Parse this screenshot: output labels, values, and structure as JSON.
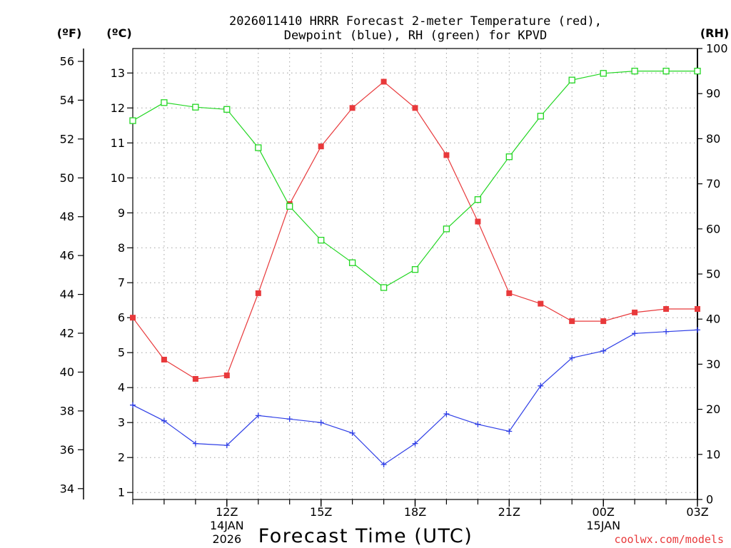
{
  "chart_data": {
    "type": "line",
    "title_line1": "2026011410 HRRR Forecast 2-meter Temperature (red),",
    "title_line2": "Dewpoint (blue), RH (green) for KPVD",
    "xlabel": "Forecast Time (UTC)",
    "credit": "coolwx.com/models",
    "unit_f": "(ºF)",
    "unit_c": "(ºC)",
    "unit_rh": "(RH)",
    "hours": [
      9,
      10,
      11,
      12,
      13,
      14,
      15,
      16,
      17,
      18,
      19,
      20,
      21,
      22,
      23,
      24,
      25,
      26,
      27
    ],
    "xlim": [
      9,
      27
    ],
    "x_ticks": [
      {
        "hour": 12,
        "label": "12Z",
        "sub1": "14JAN",
        "sub2": "2026"
      },
      {
        "hour": 15,
        "label": "15Z",
        "sub1": "",
        "sub2": ""
      },
      {
        "hour": 18,
        "label": "18Z",
        "sub1": "",
        "sub2": ""
      },
      {
        "hour": 21,
        "label": "21Z",
        "sub1": "",
        "sub2": ""
      },
      {
        "hour": 24,
        "label": "00Z",
        "sub1": "15JAN",
        "sub2": ""
      },
      {
        "hour": 27,
        "label": "03Z",
        "sub1": "",
        "sub2": ""
      }
    ],
    "celsius_axis": {
      "range": [
        0.8,
        13.7
      ],
      "ticks": [
        1,
        2,
        3,
        4,
        5,
        6,
        7,
        8,
        9,
        10,
        11,
        12,
        13
      ]
    },
    "fahrenheit_axis": {
      "ticks": [
        34,
        36,
        38,
        40,
        42,
        44,
        46,
        48,
        50,
        52,
        54,
        56
      ]
    },
    "rh_axis": {
      "range": [
        0,
        100
      ],
      "ticks": [
        0,
        10,
        20,
        30,
        40,
        50,
        60,
        70,
        80,
        90,
        100
      ]
    },
    "colors": {
      "temperature": "#e8393b",
      "dewpoint": "#2e3ee6",
      "rh": "#22d622",
      "grid": "#a0a0a0"
    },
    "series": [
      {
        "name": "Temperature",
        "axis": "celsius",
        "marker": "filled-square",
        "values": [
          6.0,
          4.8,
          4.25,
          4.35,
          6.7,
          9.25,
          10.9,
          12.0,
          12.75,
          12.0,
          10.65,
          8.75,
          6.7,
          6.4,
          5.9,
          5.9,
          6.15,
          6.25,
          6.25
        ]
      },
      {
        "name": "Dewpoint",
        "axis": "celsius",
        "marker": "plus",
        "values": [
          3.5,
          3.05,
          2.4,
          2.35,
          3.2,
          3.1,
          3.0,
          2.7,
          1.8,
          2.4,
          3.25,
          2.95,
          2.75,
          4.05,
          4.85,
          5.05,
          5.55,
          5.6,
          5.65
        ]
      },
      {
        "name": "RH",
        "axis": "rh",
        "marker": "open-square",
        "values": [
          84,
          88,
          87,
          86.5,
          78,
          65,
          57.5,
          52.5,
          47,
          51,
          60,
          66.5,
          76,
          85,
          93,
          94.5,
          95,
          95,
          95
        ]
      }
    ]
  }
}
